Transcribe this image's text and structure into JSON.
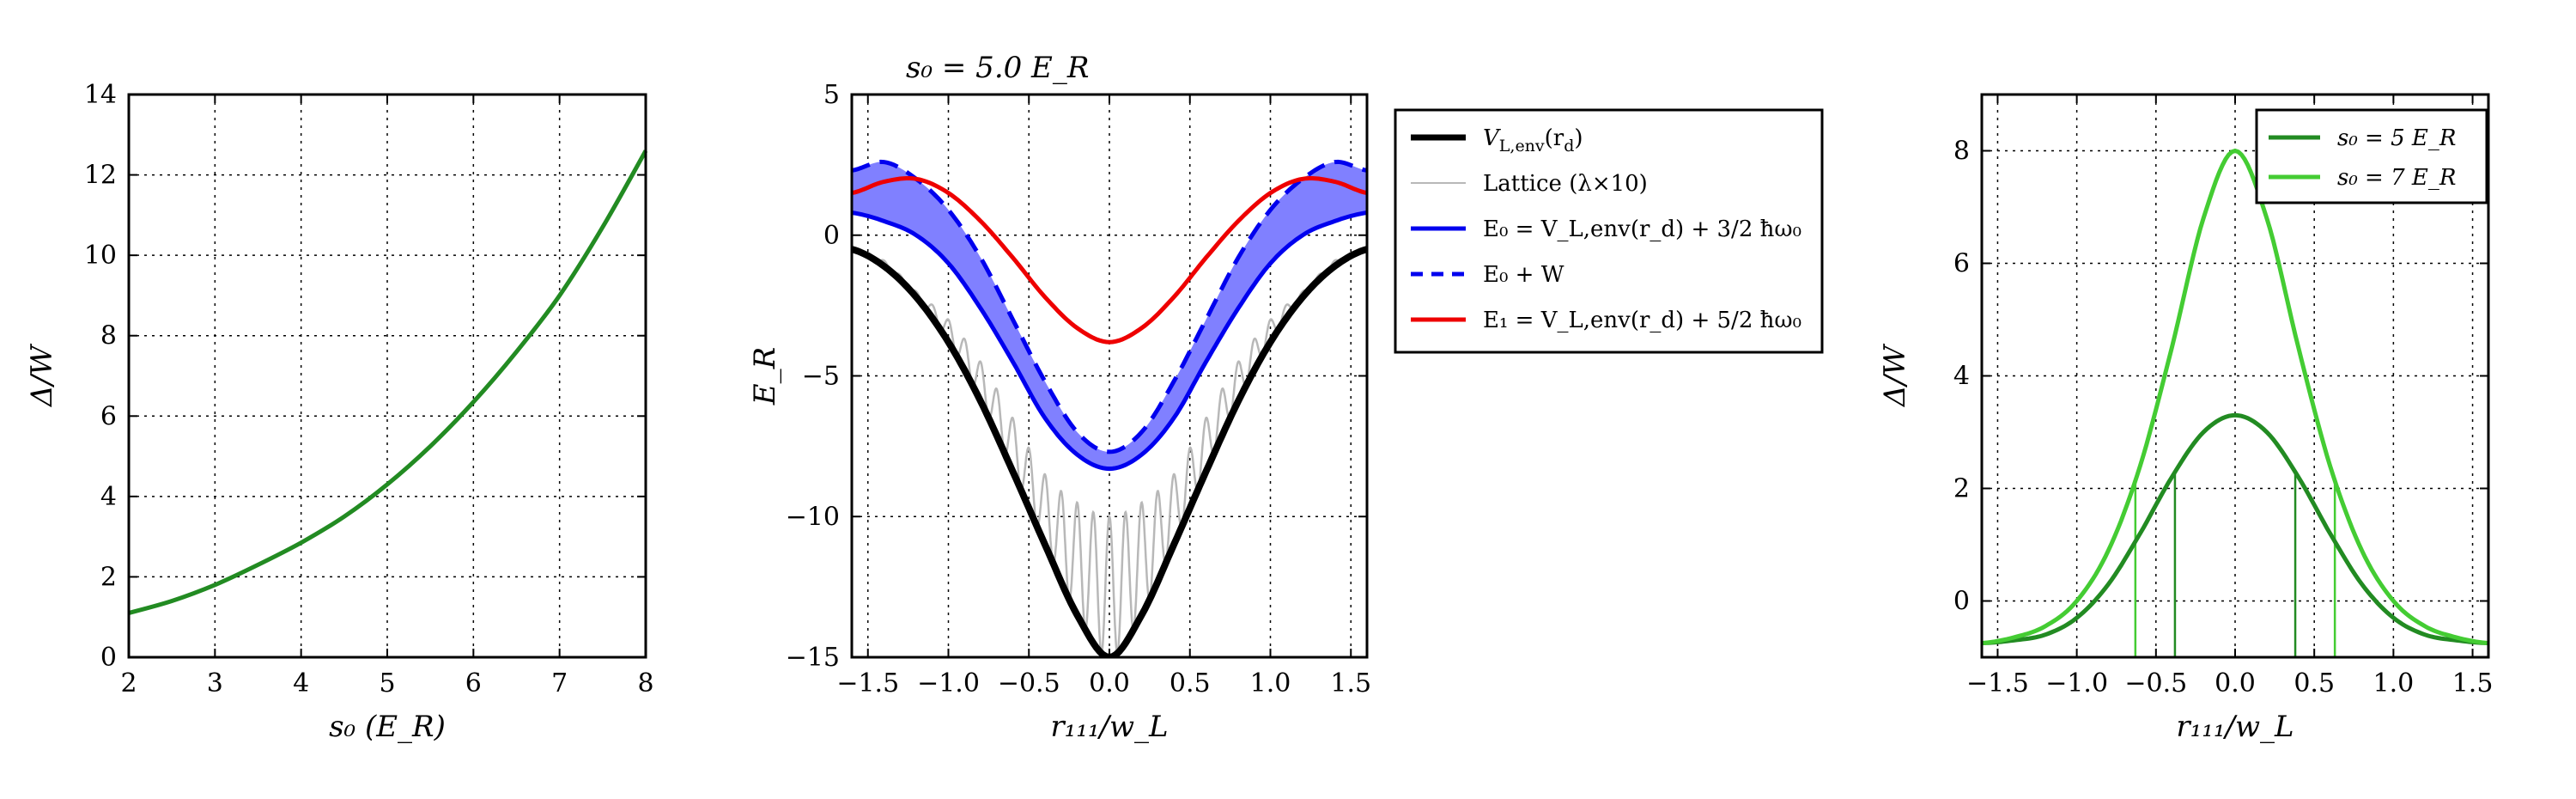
{
  "chart_data": [
    {
      "type": "line",
      "xlabel": "s₀ (E_R)",
      "ylabel": "Δ/W",
      "xlim": [
        2,
        8
      ],
      "ylim": [
        0,
        14
      ],
      "xticks": [
        "2",
        "3",
        "4",
        "5",
        "6",
        "7",
        "8"
      ],
      "yticks": [
        "0",
        "2",
        "4",
        "6",
        "8",
        "10",
        "12",
        "14"
      ],
      "grid": true,
      "series": [
        {
          "color": "#228B22",
          "x": [
            2,
            2.5,
            3,
            3.5,
            4,
            4.5,
            5,
            5.5,
            6,
            6.5,
            7,
            7.5,
            8
          ],
          "y": [
            1.1,
            1.4,
            1.8,
            2.3,
            2.85,
            3.5,
            4.3,
            5.25,
            6.35,
            7.6,
            9.0,
            10.7,
            12.6
          ]
        }
      ]
    },
    {
      "type": "line",
      "title": "s₀ = 5.0 E_R",
      "xlabel": "r₁₁₁/w_L",
      "ylabel": "E_R",
      "xlim": [
        -1.6,
        1.6
      ],
      "ylim": [
        -15,
        5
      ],
      "xticks": [
        "−1.5",
        "−1.0",
        "−0.5",
        "0.0",
        "0.5",
        "1.0",
        "1.5"
      ],
      "yticks": [
        "−15",
        "−10",
        "−5",
        "0",
        "5"
      ],
      "grid": true,
      "legend_position": "outside-right",
      "series": [
        {
          "name": "V_L,env(r_d)",
          "color": "#000000",
          "style": "solid",
          "x": [
            -1.6,
            -1.4,
            -1.2,
            -1.0,
            -0.8,
            -0.6,
            -0.4,
            -0.2,
            0.0,
            0.2,
            0.4,
            0.6,
            0.8,
            1.0,
            1.2,
            1.4,
            1.6
          ],
          "y": [
            -0.5,
            -1.1,
            -2.2,
            -3.8,
            -5.9,
            -8.4,
            -11.0,
            -13.5,
            -15.0,
            -13.5,
            -11.0,
            -8.4,
            -5.9,
            -3.8,
            -2.2,
            -1.1,
            -0.5
          ]
        },
        {
          "name": "Lattice (λ×10)",
          "color": "#b8b8b8",
          "style": "solid",
          "envelope_x": [
            -1.6,
            -1.4,
            -1.2,
            -1.0,
            -0.8,
            -0.6,
            -0.4,
            -0.2,
            0.0,
            0.2,
            0.4,
            0.6,
            0.8,
            1.0,
            1.2,
            1.4,
            1.6
          ],
          "envelope_top": [
            -0.5,
            -0.9,
            -2.0,
            -3.0,
            -4.5,
            -6.5,
            -8.5,
            -9.5,
            -10.0,
            -9.5,
            -8.5,
            -6.5,
            -4.5,
            -3.0,
            -2.0,
            -0.9,
            -0.5
          ],
          "envelope_bottom": [
            -0.5,
            -1.1,
            -2.2,
            -3.8,
            -5.9,
            -8.4,
            -11.0,
            -13.5,
            -15.0,
            -13.5,
            -11.0,
            -8.4,
            -5.9,
            -3.8,
            -2.2,
            -1.1,
            -0.5
          ]
        },
        {
          "name": "E₀ = V_L,env(r_d) + 3/2 ħω₀",
          "color": "#0000ee",
          "style": "solid",
          "x": [
            -1.6,
            -1.4,
            -1.2,
            -1.0,
            -0.8,
            -0.6,
            -0.4,
            -0.2,
            0.0,
            0.2,
            0.4,
            0.6,
            0.8,
            1.0,
            1.2,
            1.4,
            1.6
          ],
          "y": [
            0.8,
            0.5,
            0.0,
            -1.0,
            -2.6,
            -4.5,
            -6.5,
            -7.8,
            -8.3,
            -7.8,
            -6.5,
            -4.5,
            -2.6,
            -1.0,
            0.0,
            0.5,
            0.8
          ]
        },
        {
          "name": "E₀ + W",
          "color": "#0000ee",
          "style": "dashed",
          "x": [
            -1.6,
            -1.4,
            -1.2,
            -1.0,
            -0.8,
            -0.6,
            -0.4,
            -0.2,
            0.0,
            0.2,
            0.4,
            0.6,
            0.8,
            1.0,
            1.2,
            1.4,
            1.6
          ],
          "y": [
            2.3,
            2.6,
            2.0,
            0.9,
            -0.8,
            -3.0,
            -5.2,
            -7.0,
            -7.7,
            -7.0,
            -5.2,
            -3.0,
            -0.8,
            0.9,
            2.0,
            2.6,
            2.3
          ]
        },
        {
          "name": "E₁ = V_L,env(r_d) + 5/2 ħω₀",
          "color": "#ee0000",
          "style": "solid",
          "x": [
            -1.6,
            -1.4,
            -1.2,
            -1.0,
            -0.8,
            -0.6,
            -0.4,
            -0.2,
            0.0,
            0.2,
            0.4,
            0.6,
            0.8,
            1.0,
            1.2,
            1.4,
            1.6
          ],
          "y": [
            1.5,
            1.9,
            2.0,
            1.5,
            0.5,
            -0.8,
            -2.2,
            -3.3,
            -3.8,
            -3.3,
            -2.2,
            -0.8,
            0.5,
            1.5,
            2.0,
            1.9,
            1.5
          ]
        }
      ]
    },
    {
      "type": "line",
      "xlabel": "r₁₁₁/w_L",
      "ylabel": "Δ/W",
      "xlim": [
        -1.6,
        1.6
      ],
      "ylim": [
        -1,
        9
      ],
      "xticks": [
        "−1.5",
        "−1.0",
        "−0.5",
        "0.0",
        "0.5",
        "1.0",
        "1.5"
      ],
      "yticks": [
        "0",
        "2",
        "4",
        "6",
        "8"
      ],
      "grid": true,
      "legend_position": "top-right",
      "series": [
        {
          "name": "s₀ = 5 E_R",
          "color": "#228B22",
          "x": [
            -1.6,
            -1.4,
            -1.2,
            -1.0,
            -0.8,
            -0.6,
            -0.4,
            -0.2,
            0.0,
            0.2,
            0.4,
            0.6,
            0.8,
            1.0,
            1.2,
            1.4,
            1.6
          ],
          "y": [
            -0.75,
            -0.7,
            -0.6,
            -0.3,
            0.3,
            1.2,
            2.2,
            3.0,
            3.3,
            3.0,
            2.2,
            1.2,
            0.3,
            -0.3,
            -0.6,
            -0.7,
            -0.75
          ],
          "marker_x": [
            -0.38,
            0.38
          ]
        },
        {
          "name": "s₀ = 7 E_R",
          "color": "#44cc33",
          "x": [
            -1.6,
            -1.4,
            -1.2,
            -1.0,
            -0.8,
            -0.6,
            -0.4,
            -0.2,
            0.0,
            0.2,
            0.4,
            0.6,
            0.8,
            1.0,
            1.2,
            1.4,
            1.6
          ],
          "y": [
            -0.75,
            -0.65,
            -0.45,
            0.0,
            0.9,
            2.4,
            4.5,
            6.8,
            8.0,
            6.8,
            4.5,
            2.4,
            0.9,
            0.0,
            -0.45,
            -0.65,
            -0.75
          ],
          "marker_x": [
            -0.63,
            0.63
          ]
        }
      ]
    }
  ],
  "legend_middle": {
    "items": [
      {
        "label": "V",
        "sub": "L,env",
        "rest": "(r",
        "sub2": "d",
        "tail": ")",
        "color": "#000000",
        "style": "solid",
        "width": 7
      },
      {
        "label": "Lattice (λ×10)",
        "color": "#b8b8b8",
        "style": "solid",
        "width": 2
      },
      {
        "label": "E₀ = V_L,env(r_d) + 3/2 ħω₀",
        "color": "#0000ee",
        "style": "solid",
        "width": 5
      },
      {
        "label": "E₀ + W",
        "color": "#0000ee",
        "style": "dashed",
        "width": 5
      },
      {
        "label": "E₁ = V_L,env(r_d) + 5/2 ħω₀",
        "color": "#ee0000",
        "style": "solid",
        "width": 5
      }
    ]
  },
  "legend_right": {
    "items": [
      {
        "label": "s₀ = 5 E_R",
        "color": "#228B22"
      },
      {
        "label": "s₀ = 7 E_R",
        "color": "#44cc33"
      }
    ]
  },
  "colors": {
    "band_fill": "#8080ff",
    "green_dark": "#228B22",
    "green_light": "#44cc33"
  }
}
